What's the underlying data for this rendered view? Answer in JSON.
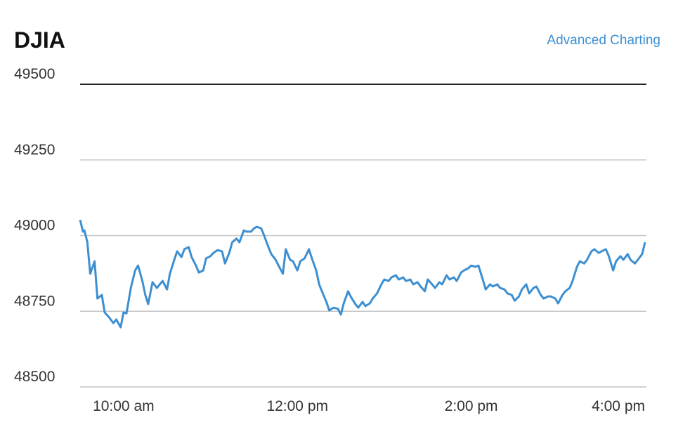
{
  "header": {
    "link": "Advanced Charting"
  },
  "chart_data": {
    "type": "line",
    "title": "DJIA",
    "x": [
      570,
      572,
      573,
      575,
      577,
      580,
      582,
      585,
      587,
      590,
      593,
      595,
      598,
      600,
      602,
      605,
      608,
      610,
      613,
      615,
      617,
      620,
      623,
      625,
      627,
      630,
      632,
      635,
      637,
      640,
      642,
      645,
      647,
      650,
      652,
      655,
      657,
      660,
      662,
      665,
      668,
      670,
      673,
      675,
      678,
      680,
      683,
      685,
      688,
      690,
      692,
      695,
      697,
      700,
      702,
      705,
      707,
      710,
      712,
      715,
      717,
      720,
      722,
      725,
      728,
      730,
      733,
      735,
      738,
      740,
      742,
      745,
      748,
      750,
      752,
      755,
      757,
      760,
      762,
      765,
      767,
      770,
      772,
      775,
      778,
      780,
      783,
      785,
      788,
      790,
      793,
      795,
      798,
      800,
      803,
      805,
      808,
      810,
      813,
      815,
      818,
      820,
      823,
      825,
      828,
      830,
      833,
      835,
      838,
      840,
      843,
      845,
      848,
      850,
      853,
      855,
      858,
      860,
      863,
      865,
      868,
      870,
      873,
      875,
      878,
      880,
      883,
      885,
      888,
      890,
      893,
      895,
      898,
      900,
      903,
      905,
      908,
      910,
      913,
      915,
      918,
      920,
      923,
      925,
      928,
      930,
      933,
      935,
      938,
      940,
      943,
      945,
      948,
      950,
      953,
      955,
      958,
      960
    ],
    "series": [
      {
        "name": "DJIA",
        "color": "#3d8fd1",
        "values": [
          49052,
          49013,
          49017,
          48978,
          48874,
          48915,
          48792,
          48804,
          48746,
          48730,
          48711,
          48723,
          48697,
          48746,
          48743,
          48827,
          48885,
          48901,
          48850,
          48804,
          48774,
          48846,
          48827,
          48839,
          48850,
          48822,
          48874,
          48920,
          48948,
          48929,
          48955,
          48962,
          48929,
          48901,
          48878,
          48885,
          48925,
          48932,
          48943,
          48952,
          48948,
          48908,
          48943,
          48978,
          48990,
          48978,
          49017,
          49013,
          49013,
          49024,
          49029,
          49024,
          49001,
          48962,
          48939,
          48920,
          48901,
          48874,
          48955,
          48920,
          48915,
          48885,
          48915,
          48925,
          48955,
          48925,
          48885,
          48839,
          48804,
          48781,
          48753,
          48762,
          48758,
          48739,
          48776,
          48816,
          48797,
          48774,
          48762,
          48781,
          48767,
          48776,
          48792,
          48809,
          48839,
          48855,
          48850,
          48862,
          48869,
          48855,
          48862,
          48850,
          48855,
          48839,
          48846,
          48832,
          48816,
          48855,
          48839,
          48827,
          48846,
          48839,
          48869,
          48855,
          48862,
          48850,
          48878,
          48885,
          48892,
          48901,
          48897,
          48901,
          48855,
          48822,
          48839,
          48832,
          48839,
          48827,
          48822,
          48809,
          48804,
          48785,
          48799,
          48822,
          48839,
          48809,
          48827,
          48832,
          48804,
          48792,
          48799,
          48799,
          48792,
          48776,
          48804,
          48816,
          48827,
          48850,
          48897,
          48915,
          48908,
          48920,
          48948,
          48955,
          48943,
          48948,
          48955,
          48932,
          48885,
          48915,
          48932,
          48920,
          48939,
          48920,
          48908,
          48920,
          48939,
          48978
        ]
      }
    ],
    "xlim": [
      570,
      960
    ],
    "xticks": [
      {
        "value": 600,
        "label": "10:00 am"
      },
      {
        "value": 720,
        "label": "12:00 pm"
      },
      {
        "value": 840,
        "label": "2:00 pm"
      },
      {
        "value": 960,
        "label": "4:00 pm"
      }
    ],
    "ylim": [
      48500,
      49500
    ],
    "yticks": [
      48500,
      48750,
      49000,
      49250,
      49500
    ],
    "grid": true
  }
}
